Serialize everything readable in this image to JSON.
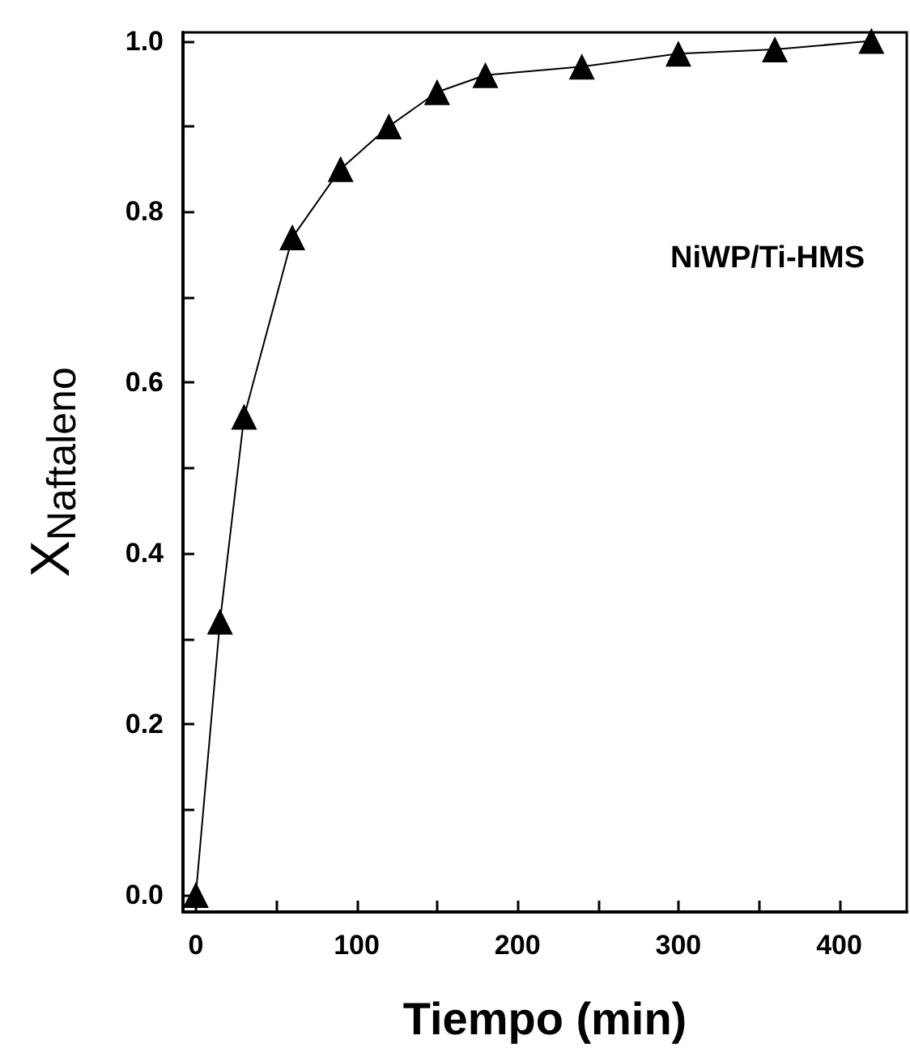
{
  "chart_data": {
    "type": "line",
    "xlabel": "Tiempo (min)",
    "ylabel": "X$_{Naftaleno}$",
    "annotations": [
      "NiWP/Ti-HMS"
    ],
    "x": [
      0,
      15,
      30,
      60,
      90,
      120,
      150,
      180,
      240,
      300,
      360,
      420
    ],
    "series": [
      {
        "color": "#000000",
        "values": [
          0,
          0.32,
          0.56,
          0.77,
          0.85,
          0.9,
          0.94,
          0.96,
          0.97,
          0.985,
          0.99,
          1.0
        ]
      }
    ],
    "xlim": [
      -8,
      442
    ],
    "xticks": [
      0,
      {
        "value": 50,
        "label": null
      },
      100,
      {
        "value": 150,
        "label": null
      },
      200,
      {
        "value": 250,
        "label": null
      },
      300,
      {
        "value": 350,
        "label": null
      },
      400
    ],
    "ylim": [
      -0.02,
      1.01
    ],
    "yticks": [
      {
        "value": 0,
        "label": "0.0"
      },
      {
        "value": 0.1,
        "label": null
      },
      {
        "value": 0.2,
        "label": "0.2"
      },
      {
        "value": 0.3,
        "label": null
      },
      {
        "value": 0.4,
        "label": "0.4"
      },
      {
        "value": 0.5,
        "label": null
      },
      {
        "value": 0.6,
        "label": "0.6"
      },
      {
        "value": 0.7,
        "label": null
      },
      {
        "value": 0.8,
        "label": "0.8"
      },
      {
        "value": 0.9,
        "label": null
      },
      {
        "value": 1,
        "label": "1.0"
      }
    ],
    "marker": "triangle",
    "line_style": "solid"
  }
}
